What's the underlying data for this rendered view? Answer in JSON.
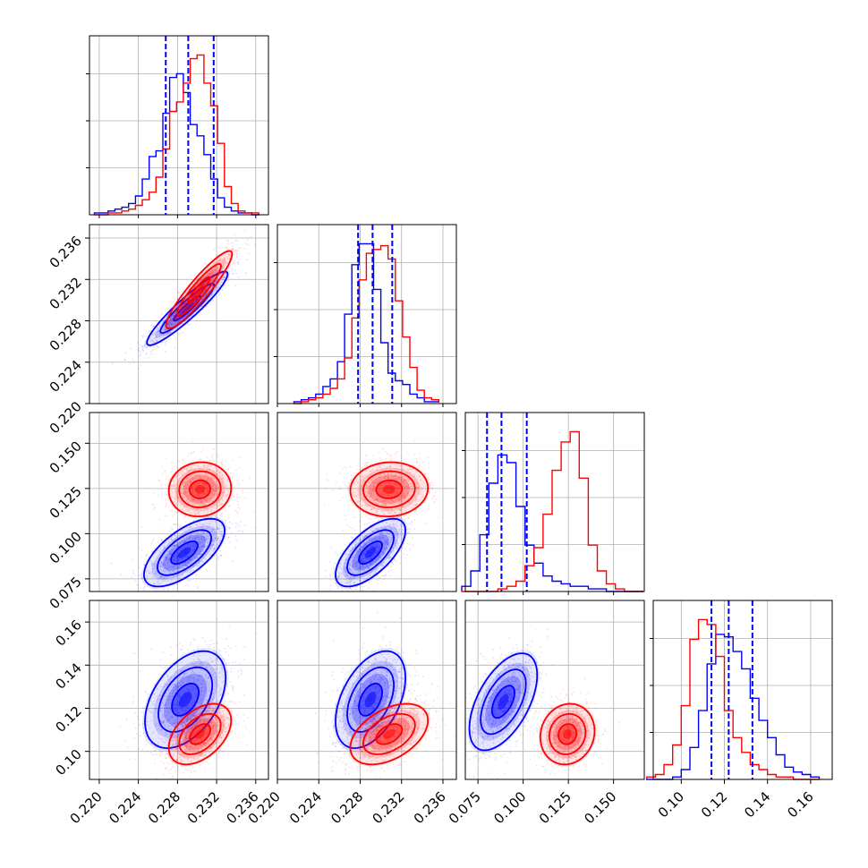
{
  "chart_data": {
    "type": "corner",
    "grid": true,
    "series": [
      {
        "color": "#0000ff"
      },
      {
        "color": "#ff0000"
      }
    ],
    "parameters": [
      {
        "range": [
          0.219,
          0.2373
        ],
        "ticks": [
          0.22,
          0.224,
          0.228,
          0.232,
          0.236
        ],
        "tick_labels": [
          "0.220",
          "0.224",
          "0.228",
          "0.232",
          "0.236"
        ]
      },
      {
        "range": [
          0.22,
          0.2373
        ],
        "ticks": [
          0.22,
          0.224,
          0.228,
          0.232,
          0.236
        ],
        "tick_labels": [
          "0.220",
          "0.224",
          "0.228",
          "0.232",
          "0.236"
        ]
      },
      {
        "range": [
          0.068,
          0.167
        ],
        "ticks": [
          0.075,
          0.1,
          0.125,
          0.15
        ],
        "tick_labels": [
          "0.075",
          "0.100",
          "0.125",
          "0.150"
        ]
      },
      {
        "range": [
          0.087,
          0.17
        ],
        "ticks": [
          0.1,
          0.12,
          0.14,
          0.16
        ],
        "tick_labels": [
          "0.10",
          "0.12",
          "0.14",
          "0.16"
        ]
      }
    ],
    "quantile_lines": [
      [
        0.2268,
        0.2291,
        0.2317
      ],
      [
        0.2278,
        0.2292,
        0.2311
      ],
      [
        0.08,
        0.088,
        0.102
      ],
      [
        0.114,
        0.122,
        0.133
      ]
    ],
    "histograms": [
      {
        "bin_edges": [
          0.2195,
          0.2202,
          0.2209,
          0.2216,
          0.2223,
          0.223,
          0.2237,
          0.2244,
          0.2251,
          0.2258,
          0.2265,
          0.2272,
          0.2279,
          0.2286,
          0.2293,
          0.23,
          0.2307,
          0.2314,
          0.2321,
          0.2328,
          0.2335,
          0.2342,
          0.2349,
          0.2356,
          0.2363
        ],
        "counts": [
          [
            1,
            1,
            2,
            3,
            4,
            6,
            10,
            19,
            31,
            34,
            54,
            73,
            75,
            65,
            48,
            42,
            32,
            19,
            9,
            4,
            2,
            1,
            1,
            0
          ],
          [
            0,
            0,
            1,
            1,
            2,
            3,
            5,
            8,
            12,
            20,
            35,
            55,
            60,
            70,
            83,
            85,
            70,
            58,
            38,
            15,
            6,
            2,
            1,
            1
          ]
        ]
      },
      {
        "bin_edges": [
          0.2216,
          0.2223,
          0.223,
          0.2237,
          0.2244,
          0.2251,
          0.2258,
          0.2265,
          0.2272,
          0.2279,
          0.2286,
          0.2293,
          0.23,
          0.2307,
          0.2314,
          0.2321,
          0.2328,
          0.2335,
          0.2342,
          0.2349,
          0.2356
        ],
        "counts": [
          [
            1,
            2,
            3,
            5,
            9,
            13,
            22,
            47,
            73,
            84,
            84,
            60,
            32,
            16,
            12,
            10,
            5,
            3,
            1,
            1
          ],
          [
            0,
            1,
            2,
            3,
            5,
            8,
            13,
            24,
            45,
            65,
            79,
            81,
            83,
            76,
            54,
            35,
            19,
            7,
            3,
            2
          ]
        ]
      },
      {
        "bin_edges": [
          0.066,
          0.071,
          0.076,
          0.081,
          0.086,
          0.091,
          0.096,
          0.101,
          0.106,
          0.111,
          0.116,
          0.121,
          0.126,
          0.131,
          0.136,
          0.141,
          0.146,
          0.151,
          0.156,
          0.161,
          0.166
        ],
        "counts": [
          [
            2,
            8,
            22,
            42,
            53,
            50,
            33,
            18,
            11,
            6,
            4,
            3,
            2,
            2,
            1,
            1,
            0,
            0,
            0,
            0
          ],
          [
            0,
            0,
            0,
            0,
            1,
            2,
            4,
            10,
            17,
            30,
            47,
            58,
            62,
            44,
            18,
            8,
            3,
            1,
            0,
            0
          ]
        ]
      },
      {
        "bin_edges": [
          0.084,
          0.088,
          0.092,
          0.096,
          0.1,
          0.104,
          0.108,
          0.112,
          0.116,
          0.12,
          0.124,
          0.128,
          0.132,
          0.136,
          0.14,
          0.144,
          0.148,
          0.152,
          0.156,
          0.16,
          0.164
        ],
        "counts": [
          [
            0,
            0,
            0,
            1,
            4,
            13,
            28,
            47,
            59,
            58,
            52,
            45,
            33,
            24,
            17,
            10,
            5,
            3,
            2,
            1
          ],
          [
            1,
            2,
            6,
            14,
            30,
            57,
            65,
            63,
            50,
            28,
            17,
            11,
            6,
            4,
            2,
            1,
            1,
            0,
            0,
            0
          ]
        ]
      }
    ],
    "pairs": [
      {
        "row": 1,
        "col": 0,
        "series": [
          {
            "mean": [
              0.229,
              0.2292
            ],
            "sd": [
              0.0022,
              0.0019
            ],
            "rho": 0.93
          },
          {
            "mean": [
              0.2302,
              0.231
            ],
            "sd": [
              0.0018,
              0.002
            ],
            "rho": 0.92
          }
        ]
      },
      {
        "row": 2,
        "col": 0,
        "series": [
          {
            "mean": [
              0.2287,
              0.0895
            ],
            "sd": [
              0.0022,
              0.01
            ],
            "rho": 0.65
          },
          {
            "mean": [
              0.2303,
              0.1245
            ],
            "sd": [
              0.0017,
              0.008
            ],
            "rho": 0.05
          }
        ]
      },
      {
        "row": 2,
        "col": 1,
        "series": [
          {
            "mean": [
              0.229,
              0.0895
            ],
            "sd": [
              0.0018,
              0.01
            ],
            "rho": 0.65
          },
          {
            "mean": [
              0.2308,
              0.1245
            ],
            "sd": [
              0.002,
              0.008
            ],
            "rho": 0.05
          }
        ]
      },
      {
        "row": 3,
        "col": 0,
        "series": [
          {
            "mean": [
              0.2288,
              0.124
            ],
            "sd": [
              0.0022,
              0.012
            ],
            "rho": 0.45
          },
          {
            "mean": [
              0.2303,
              0.108
            ],
            "sd": [
              0.0017,
              0.0075
            ],
            "rho": 0.45
          }
        ]
      },
      {
        "row": 3,
        "col": 1,
        "series": [
          {
            "mean": [
              0.229,
              0.124
            ],
            "sd": [
              0.0018,
              0.012
            ],
            "rho": 0.45
          },
          {
            "mean": [
              0.2308,
              0.108
            ],
            "sd": [
              0.002,
              0.0075
            ],
            "rho": 0.45
          }
        ]
      },
      {
        "row": 3,
        "col": 2,
        "series": [
          {
            "mean": [
              0.089,
              0.123
            ],
            "sd": [
              0.01,
              0.012
            ],
            "rho": 0.55
          },
          {
            "mean": [
              0.1245,
              0.108
            ],
            "sd": [
              0.008,
              0.0075
            ],
            "rho": 0.1
          }
        ]
      }
    ]
  }
}
